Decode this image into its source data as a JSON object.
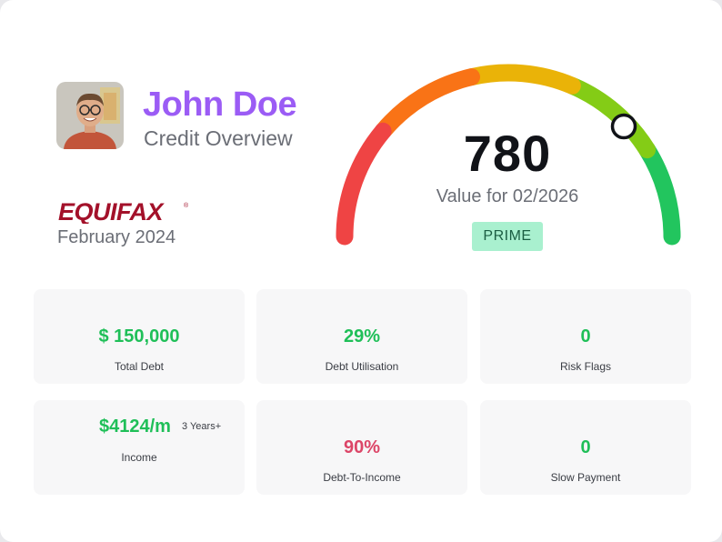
{
  "profile": {
    "name": "John Doe",
    "subtitle": "Credit Overview"
  },
  "bureau": {
    "logo_text": "EQUIFAX",
    "report_date": "February 2024"
  },
  "gauge": {
    "score": "780",
    "value_for": "Value for 02/2026",
    "rating": "PRIME",
    "segment_colors": [
      "#ef4444",
      "#f97316",
      "#eab308",
      "#84cc16",
      "#22c55e"
    ]
  },
  "stats": {
    "total_debt": {
      "value": "$ 150,000",
      "label": "Total Debt"
    },
    "debt_utilisation": {
      "value": "29%",
      "label": "Debt Utilisation"
    },
    "risk_flags": {
      "value": "0",
      "label": "Risk Flags"
    },
    "income": {
      "value": "$4124/m",
      "tenure": "3 Years+",
      "label": "Income"
    },
    "debt_to_income": {
      "value": "90%",
      "label": "Debt-To-Income"
    },
    "slow_payment": {
      "value": "0",
      "label": "Slow Payment"
    }
  },
  "colors": {
    "name": "#9b5cf5",
    "positive": "#1fbf58",
    "negative": "#dc4668",
    "badge_bg": "#a9f0cf"
  }
}
